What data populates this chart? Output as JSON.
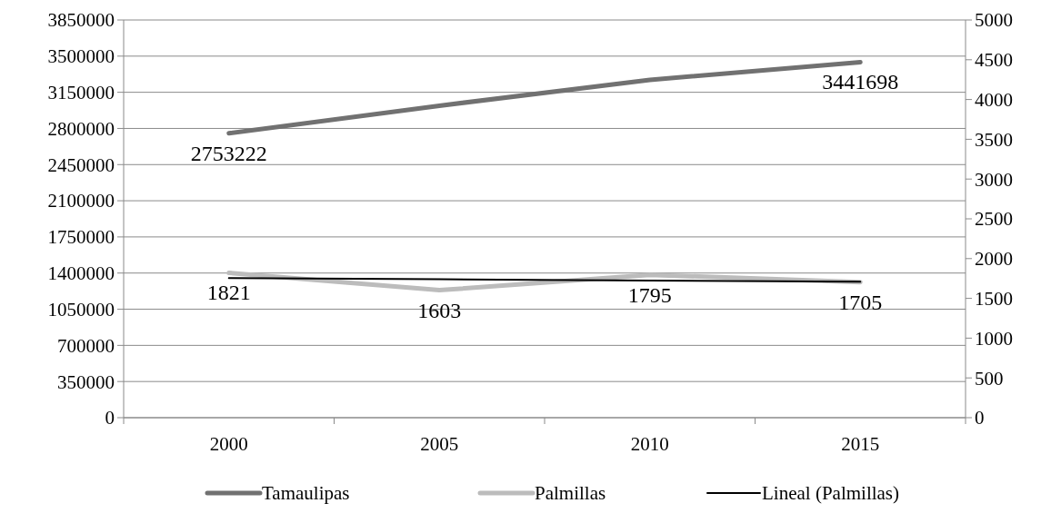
{
  "chart_data": {
    "type": "line",
    "categories": [
      "2000",
      "2005",
      "2010",
      "2015"
    ],
    "series": [
      {
        "name": "Tamaulipas",
        "color": "#717171",
        "values": [
          2753222,
          3020000,
          3270000,
          3441698
        ],
        "value_labels": [
          "2753222",
          null,
          null,
          "3441698"
        ]
      },
      {
        "name": "Palmillas",
        "color": "#bcbcbc",
        "values": [
          1821,
          1603,
          1795,
          1705
        ],
        "axis": "y2",
        "value_labels": [
          "1821",
          "1603",
          "1795",
          "1705"
        ]
      },
      {
        "name": "Lineal (Palmillas)",
        "color": "#000000",
        "values": [
          1755,
          1740,
          1725,
          1710
        ],
        "axis": "y2"
      }
    ],
    "ylim": [
      0,
      3850000
    ],
    "yticks": [
      0,
      350000,
      700000,
      1050000,
      1400000,
      1750000,
      2100000,
      2450000,
      2800000,
      3150000,
      3500000,
      3850000
    ],
    "y2lim": [
      0,
      5000
    ],
    "y2ticks": [
      0,
      500,
      1000,
      1500,
      2000,
      2500,
      3000,
      3500,
      4000,
      4500,
      5000
    ],
    "grid": "y",
    "legend": "bottom",
    "marker": "none",
    "line_style": "solid"
  }
}
